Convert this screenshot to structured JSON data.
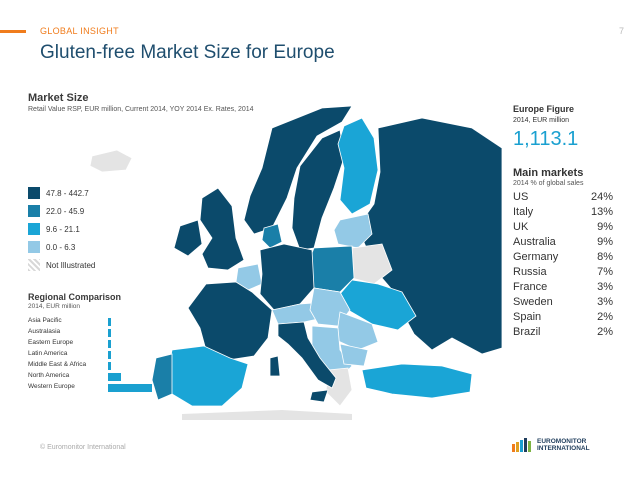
{
  "header": {
    "section_tag": "GLOBAL INSIGHT",
    "page_number": "7",
    "title": "Gluten-free Market Size for Europe"
  },
  "map": {
    "title": "Market Size",
    "subtitle": "Retail Value RSP, EUR million, Current 2014, YOY 2014 Ex. Rates, 2014",
    "legend": [
      {
        "label": "47.8 - 442.7",
        "color": "#0b4a6b"
      },
      {
        "label": "22.0 - 45.9",
        "color": "#1a7fa8"
      },
      {
        "label": "9.6 - 21.1",
        "color": "#1aa5d6"
      },
      {
        "label": "0.0 - 6.3",
        "color": "#93c9e6"
      },
      {
        "label": "Not Illustrated",
        "color": "#e8e8e8"
      }
    ],
    "map_colors": {
      "darkest": "#0b4a6b",
      "dark": "#1a7fa8",
      "medium": "#1aa5d6",
      "light": "#93c9e6",
      "none": "#e4e4e4"
    }
  },
  "regional": {
    "title": "Regional Comparison",
    "subtitle": "2014, EUR million",
    "bar_color": "#1aa0d0",
    "regions": [
      {
        "label": "Asia Pacific",
        "value": 5
      },
      {
        "label": "Australasia",
        "value": 60
      },
      {
        "label": "Eastern Europe",
        "value": 70
      },
      {
        "label": "Latin America",
        "value": 20
      },
      {
        "label": "Middle East & Africa",
        "value": 15
      },
      {
        "label": "North America",
        "value": 300
      },
      {
        "label": "Western Europe",
        "value": 1000
      }
    ]
  },
  "europe_figure": {
    "title": "Europe Figure",
    "subtitle": "2014, EUR million",
    "value": "1,113.1"
  },
  "main_markets": {
    "title": "Main markets",
    "subtitle": "2014 % of global sales",
    "rows": [
      {
        "country": "US",
        "share": "24%"
      },
      {
        "country": "Italy",
        "share": "13%"
      },
      {
        "country": "UK",
        "share": "9%"
      },
      {
        "country": "Australia",
        "share": "9%"
      },
      {
        "country": "Germany",
        "share": "8%"
      },
      {
        "country": "Russia",
        "share": "7%"
      },
      {
        "country": "France",
        "share": "3%"
      },
      {
        "country": "Sweden",
        "share": "3%"
      },
      {
        "country": "Spain",
        "share": "2%"
      },
      {
        "country": "Brazil",
        "share": "2%"
      }
    ]
  },
  "footer": {
    "copyright": "© Euromonitor International",
    "logo_line1": "EUROMONITOR",
    "logo_line2": "INTERNATIONAL"
  }
}
